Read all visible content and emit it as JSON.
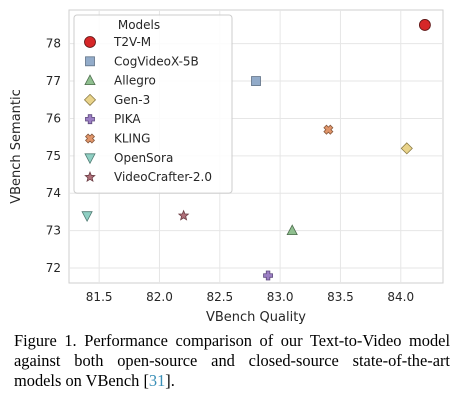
{
  "chart_data": {
    "type": "scatter",
    "xlabel": "VBench Quality",
    "ylabel": "VBench Semantic",
    "xlim": [
      81.25,
      84.35
    ],
    "ylim": [
      71.6,
      78.9
    ],
    "x_ticks": [
      81.5,
      82.0,
      82.5,
      83.0,
      83.5,
      84.0
    ],
    "x_tick_labels": [
      "81.5",
      "82.0",
      "82.5",
      "83.0",
      "83.5",
      "84.0"
    ],
    "y_ticks": [
      72,
      73,
      74,
      75,
      76,
      77,
      78
    ],
    "y_tick_labels": [
      "72",
      "73",
      "74",
      "75",
      "76",
      "77",
      "78"
    ],
    "grid": true,
    "legend": {
      "title": "Models",
      "placement": "top-left"
    },
    "series": [
      {
        "name": "T2V-M",
        "marker": "circle",
        "color": "#d62728",
        "edge": "#5a1010",
        "x": [
          84.2
        ],
        "y": [
          78.5
        ]
      },
      {
        "name": "CogVideoX-5B",
        "marker": "square",
        "color": "#92abc9",
        "edge": "#5f7185",
        "x": [
          82.8
        ],
        "y": [
          77.0
        ]
      },
      {
        "name": "Allegro",
        "marker": "triangle-up",
        "color": "#8fbf8f",
        "edge": "#4f6e4f",
        "x": [
          83.1
        ],
        "y": [
          73.0
        ]
      },
      {
        "name": "Gen-3",
        "marker": "diamond",
        "color": "#e9d38a",
        "edge": "#8a7a45",
        "x": [
          84.05
        ],
        "y": [
          75.2
        ]
      },
      {
        "name": "PIKA",
        "marker": "plus",
        "color": "#9c7fc4",
        "edge": "#5e4a7d",
        "x": [
          82.9
        ],
        "y": [
          71.8
        ]
      },
      {
        "name": "KLING",
        "marker": "x",
        "color": "#e0956a",
        "edge": "#8a5a3d",
        "x": [
          83.4
        ],
        "y": [
          75.7
        ]
      },
      {
        "name": "OpenSora",
        "marker": "triangle-down",
        "color": "#8fcfc3",
        "edge": "#4f7a72",
        "x": [
          81.4
        ],
        "y": [
          73.4
        ]
      },
      {
        "name": "VideoCrafter-2.0",
        "marker": "star",
        "color": "#b0707a",
        "edge": "#6b3d44",
        "x": [
          82.2
        ],
        "y": [
          73.4
        ]
      }
    ]
  },
  "caption": {
    "text": "Figure 1. Performance comparison of our Text-to-Video model against both open-source and closed-source state-of-the-art models on VBench [",
    "ref": "31",
    "end": "]."
  }
}
